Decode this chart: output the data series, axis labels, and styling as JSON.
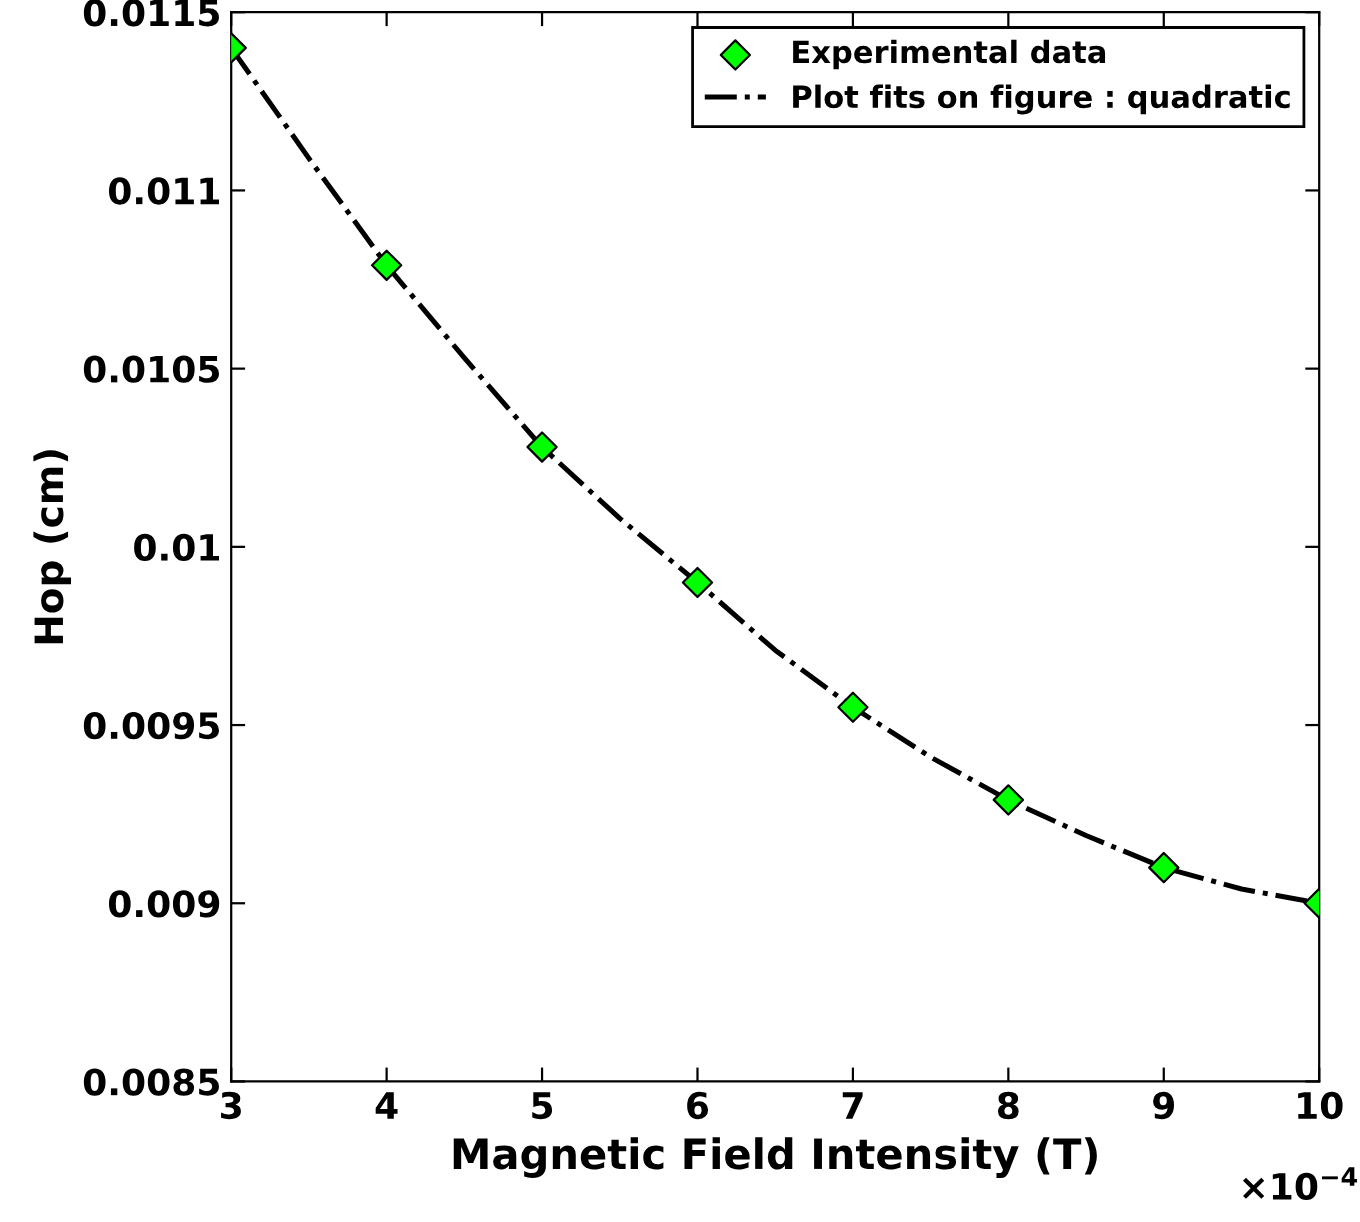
{
  "chart_data": {
    "type": "scatter",
    "xlabel": "Magnetic Field Intensity (T)",
    "ylabel": "Hop (cm)",
    "x": [
      3,
      4,
      5,
      6,
      7,
      8,
      9,
      10
    ],
    "series": [
      {
        "name": "Experimental data",
        "color": "#00ff00",
        "marker": "diamond",
        "values": [
          0.0114,
          0.01079,
          0.01028,
          0.0099,
          0.00955,
          0.00929,
          0.0091,
          0.009
        ]
      },
      {
        "name": "Plot fits on figure : quadratic",
        "type": "line",
        "color": "#000000",
        "marker": "none",
        "line_style": "dashed",
        "x": [
          3,
          3.5,
          4,
          4.5,
          5,
          5.5,
          6,
          6.5,
          7,
          7.5,
          8,
          8.5,
          9,
          9.5,
          10
        ],
        "values": [
          0.0114,
          0.01109,
          0.01079,
          0.01053,
          0.01028,
          0.01008,
          0.0099,
          0.00971,
          0.00955,
          0.00941,
          0.00929,
          0.00919,
          0.0091,
          0.00904,
          0.009
        ]
      }
    ],
    "xlim": [
      3,
      10
    ],
    "xticks": [
      3,
      4,
      5,
      6,
      7,
      8,
      9,
      10
    ],
    "ylim": [
      0.0085,
      0.0115
    ],
    "yticks": [
      0.0085,
      0.009,
      0.0095,
      0.01,
      0.0105,
      0.011,
      0.0115
    ],
    "annotations": [
      "×10$^{−4}$"
    ],
    "grid": false,
    "legend": "top right"
  }
}
